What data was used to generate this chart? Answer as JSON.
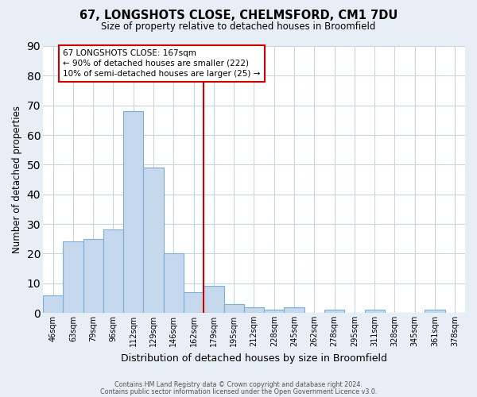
{
  "title": "67, LONGSHOTS CLOSE, CHELMSFORD, CM1 7DU",
  "subtitle": "Size of property relative to detached houses in Broomfield",
  "xlabel": "Distribution of detached houses by size in Broomfield",
  "ylabel": "Number of detached properties",
  "footer_lines": [
    "Contains HM Land Registry data © Crown copyright and database right 2024.",
    "Contains public sector information licensed under the Open Government Licence v3.0."
  ],
  "bar_labels": [
    "46sqm",
    "63sqm",
    "79sqm",
    "96sqm",
    "112sqm",
    "129sqm",
    "146sqm",
    "162sqm",
    "179sqm",
    "195sqm",
    "212sqm",
    "228sqm",
    "245sqm",
    "262sqm",
    "278sqm",
    "295sqm",
    "311sqm",
    "328sqm",
    "345sqm",
    "361sqm",
    "378sqm"
  ],
  "bar_heights": [
    6,
    24,
    25,
    28,
    68,
    49,
    20,
    7,
    9,
    3,
    2,
    1,
    2,
    0,
    1,
    0,
    1,
    0,
    0,
    1,
    0
  ],
  "bar_color": "#c5d8ed",
  "bar_edge_color": "#7bafd4",
  "bar_edge_width": 0.8,
  "grid_color": "#c8d4e0",
  "plot_background_color": "#ffffff",
  "figure_background_color": "#e8eef5",
  "vline_x_index": 7,
  "vline_color": "#cc0000",
  "annotation_line1": "67 LONGSHOTS CLOSE: 167sqm",
  "annotation_line2": "← 90% of detached houses are smaller (222)",
  "annotation_line3": "10% of semi-detached houses are larger (25) →",
  "annotation_box_color": "#ffffff",
  "annotation_border_color": "#cc0000",
  "ylim": [
    0,
    90
  ],
  "yticks": [
    0,
    10,
    20,
    30,
    40,
    50,
    60,
    70,
    80,
    90
  ]
}
